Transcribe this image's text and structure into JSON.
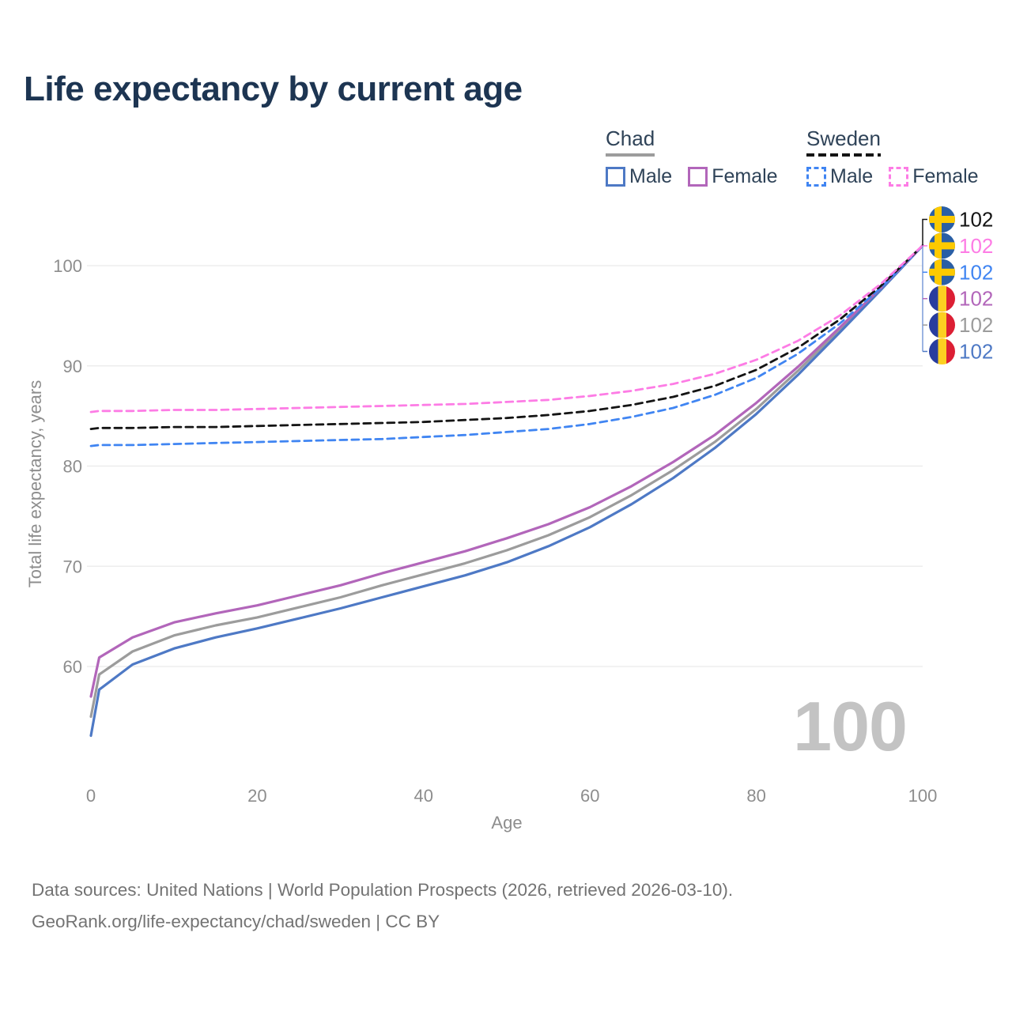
{
  "title": "Life expectancy by current age",
  "legend": {
    "chad": {
      "label": "Chad",
      "male_label": "Male",
      "female_label": "Female"
    },
    "sweden": {
      "label": "Sweden",
      "male_label": "Male",
      "female_label": "Female"
    }
  },
  "chart_data": {
    "type": "line",
    "title": "Life expectancy by current age",
    "xlabel": "Age",
    "ylabel": "Total life expectancy, years",
    "xlim": [
      0,
      100
    ],
    "ylim": [
      53,
      103
    ],
    "xticks": [
      0,
      20,
      40,
      60,
      80,
      100
    ],
    "yticks": [
      60,
      70,
      80,
      90,
      100
    ],
    "grid": "horizontal",
    "legend_position": "top-right",
    "x": [
      0,
      1,
      5,
      10,
      15,
      20,
      25,
      30,
      35,
      40,
      45,
      50,
      55,
      60,
      65,
      70,
      75,
      80,
      85,
      90,
      95,
      100
    ],
    "series": [
      {
        "name": "Chad Male",
        "country": "Chad",
        "sex": "Male",
        "style": "solid",
        "color": "#4e79c5",
        "values": [
          53.1,
          57.7,
          60.2,
          61.8,
          62.9,
          63.8,
          64.8,
          65.8,
          66.9,
          68.0,
          69.1,
          70.4,
          72.0,
          73.9,
          76.2,
          78.8,
          81.8,
          85.2,
          89.1,
          93.3,
          97.6,
          102
        ]
      },
      {
        "name": "Chad Female",
        "country": "Chad",
        "sex": "Female",
        "style": "solid",
        "color": "#b266ba",
        "values": [
          57.0,
          60.9,
          62.9,
          64.4,
          65.3,
          66.1,
          67.1,
          68.1,
          69.3,
          70.4,
          71.5,
          72.8,
          74.2,
          75.9,
          78.0,
          80.4,
          83.1,
          86.3,
          89.9,
          93.8,
          97.8,
          102
        ]
      },
      {
        "name": "Chad Both sexes",
        "country": "Chad",
        "sex": "Both",
        "style": "solid",
        "color": "#9c9c9c",
        "values": [
          55.0,
          59.2,
          61.5,
          63.1,
          64.1,
          64.9,
          65.9,
          66.9,
          68.1,
          69.2,
          70.3,
          71.6,
          73.1,
          74.9,
          77.1,
          79.6,
          82.4,
          85.7,
          89.5,
          93.6,
          97.7,
          102
        ]
      },
      {
        "name": "Sweden Male",
        "country": "Sweden",
        "sex": "Male",
        "style": "dashed",
        "color": "#4085f2",
        "values": [
          82.0,
          82.1,
          82.1,
          82.2,
          82.3,
          82.4,
          82.5,
          82.6,
          82.7,
          82.9,
          83.1,
          83.4,
          83.7,
          84.2,
          84.9,
          85.8,
          87.1,
          88.8,
          91.2,
          94.2,
          97.8,
          102
        ]
      },
      {
        "name": "Sweden Female",
        "country": "Sweden",
        "sex": "Female",
        "style": "dashed",
        "color": "#fd7ce5",
        "values": [
          85.4,
          85.5,
          85.5,
          85.6,
          85.6,
          85.7,
          85.8,
          85.9,
          86.0,
          86.1,
          86.2,
          86.4,
          86.6,
          87.0,
          87.5,
          88.2,
          89.2,
          90.6,
          92.5,
          95.0,
          98.2,
          102
        ]
      },
      {
        "name": "Sweden Both sexes",
        "country": "Sweden",
        "sex": "Both",
        "style": "dashed",
        "color": "#141414",
        "values": [
          83.7,
          83.8,
          83.8,
          83.9,
          83.9,
          84.0,
          84.1,
          84.2,
          84.3,
          84.4,
          84.6,
          84.8,
          85.1,
          85.5,
          86.1,
          86.9,
          88.0,
          89.6,
          91.8,
          94.6,
          98.0,
          102
        ]
      }
    ]
  },
  "end_labels": {
    "rows": [
      {
        "flag": "sweden",
        "series": "Sweden Both sexes",
        "value": "102",
        "color": "#141414"
      },
      {
        "flag": "sweden",
        "series": "Sweden Female",
        "value": "102",
        "color": "#fd7ce5"
      },
      {
        "flag": "sweden",
        "series": "Sweden Male",
        "value": "102",
        "color": "#4085f2"
      },
      {
        "flag": "chad",
        "series": "Chad Female",
        "value": "102",
        "color": "#b266ba"
      },
      {
        "flag": "chad",
        "series": "Chad Both sexes",
        "value": "102",
        "color": "#9c9c9c"
      },
      {
        "flag": "chad",
        "series": "Chad Male",
        "value": "102",
        "color": "#4e79c5"
      }
    ]
  },
  "watermark": "100",
  "footer": {
    "line1": "Data sources: United Nations | World Population Prospects (2026, retrieved 2026-03-10).",
    "line2": "GeoRank.org/life-expectancy/chad/sweden | CC BY"
  },
  "colors": {
    "title": "#1d3552",
    "legend_text": "#2f4358",
    "axis_text": "#8d8d8d",
    "gridline": "#ededed",
    "footer_text": "#737373",
    "watermark": "#c3c3c3",
    "flag_sweden_blue": "#2a5fa5",
    "flag_sweden_yellow": "#fdca00",
    "flag_chad_blue": "#283d9e",
    "flag_chad_yellow": "#fcd021",
    "flag_chad_red": "#dc1f34"
  }
}
